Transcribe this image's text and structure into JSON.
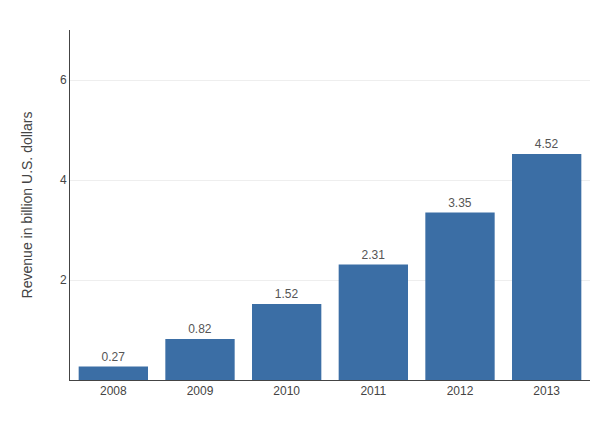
{
  "chart_data": {
    "type": "bar",
    "categories": [
      "2008",
      "2009",
      "2010",
      "2011",
      "2012",
      "2013"
    ],
    "values": [
      0.27,
      0.82,
      1.52,
      2.31,
      3.35,
      4.52
    ],
    "color": "#3B6EA5",
    "ylabel": "Revenue in billion U.S. dollars",
    "ylim": [
      0,
      7.0
    ],
    "yticks": [
      2,
      4,
      6
    ],
    "grid": true,
    "data_labels": true
  }
}
